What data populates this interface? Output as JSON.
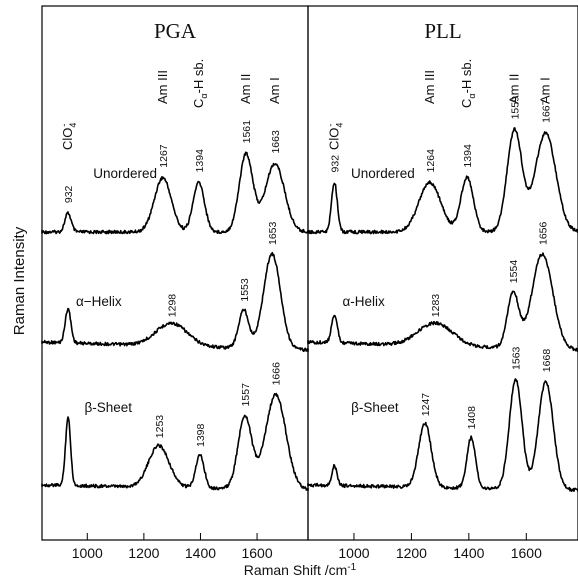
{
  "chart_data": {
    "type": "line",
    "xlabel": "Raman Shift /cm",
    "xlabel_sup": "-1",
    "ylabel": "Raman Intensity",
    "grid": false,
    "legend": "none",
    "panels": [
      {
        "title": "PGA",
        "xlim": [
          840,
          1780
        ],
        "xticks": [
          1000,
          1200,
          1400,
          1600
        ],
        "band_labels": [
          {
            "label": "ClO4-",
            "x": 932
          },
          {
            "label": "Am III",
            "x": 1267
          },
          {
            "label": "Cα-H sb.",
            "x": 1394
          },
          {
            "label": "Am II",
            "x": 1561
          },
          {
            "label": "Am I",
            "x": 1663
          }
        ],
        "series": [
          {
            "name": "Unordered",
            "peaks": [
              {
                "x": 932,
                "label": "932",
                "h": 0.16,
                "w": 11
              },
              {
                "x": 1267,
                "label": "1267",
                "h": 0.46,
                "w": 30
              },
              {
                "x": 1394,
                "label": "1394",
                "h": 0.42,
                "w": 20
              },
              {
                "x": 1561,
                "label": "1561",
                "h": 0.66,
                "w": 24
              },
              {
                "x": 1663,
                "label": "1663",
                "h": 0.58,
                "w": 34
              }
            ]
          },
          {
            "name": "α−Helix",
            "peaks": [
              {
                "x": 932,
                "label": "",
                "h": 0.36,
                "w": 10
              },
              {
                "x": 1298,
                "label": "1298",
                "h": 0.24,
                "w": 55
              },
              {
                "x": 1553,
                "label": "1553",
                "h": 0.4,
                "w": 18
              },
              {
                "x": 1653,
                "label": "1653",
                "h": 1.0,
                "w": 30
              }
            ]
          },
          {
            "name": "β-Sheet",
            "peaks": [
              {
                "x": 932,
                "label": "",
                "h": 0.62,
                "w": 9
              },
              {
                "x": 1253,
                "label": "1253",
                "h": 0.38,
                "w": 36
              },
              {
                "x": 1398,
                "label": "1398",
                "h": 0.3,
                "w": 15
              },
              {
                "x": 1557,
                "label": "1557",
                "h": 0.66,
                "w": 24
              },
              {
                "x": 1666,
                "label": "1666",
                "h": 0.86,
                "w": 36
              }
            ]
          }
        ]
      },
      {
        "title": "PLL",
        "xlim": [
          840,
          1780
        ],
        "xticks": [
          1000,
          1200,
          1400,
          1600
        ],
        "band_labels": [
          {
            "label": "ClO4-",
            "x": 932
          },
          {
            "label": "Am III",
            "x": 1264
          },
          {
            "label": "Cα-H sb.",
            "x": 1394
          },
          {
            "label": "Am II",
            "x": 1559
          },
          {
            "label": "Am I",
            "x": 1667
          }
        ],
        "series": [
          {
            "name": "Unordered",
            "peaks": [
              {
                "x": 932,
                "label": "932",
                "h": 0.42,
                "w": 10
              },
              {
                "x": 1264,
                "label": "1264",
                "h": 0.42,
                "w": 38
              },
              {
                "x": 1394,
                "label": "1394",
                "h": 0.46,
                "w": 22
              },
              {
                "x": 1559,
                "label": "1559",
                "h": 0.86,
                "w": 26
              },
              {
                "x": 1667,
                "label": "1667",
                "h": 0.84,
                "w": 36
              }
            ]
          },
          {
            "name": "α-Helix",
            "peaks": [
              {
                "x": 932,
                "label": "",
                "h": 0.3,
                "w": 10
              },
              {
                "x": 1283,
                "label": "1283",
                "h": 0.24,
                "w": 60
              },
              {
                "x": 1554,
                "label": "1554",
                "h": 0.58,
                "w": 20
              },
              {
                "x": 1656,
                "label": "1656",
                "h": 1.0,
                "w": 36
              }
            ]
          },
          {
            "name": "β-Sheet",
            "peaks": [
              {
                "x": 932,
                "label": "",
                "h": 0.18,
                "w": 9
              },
              {
                "x": 1247,
                "label": "1247",
                "h": 0.58,
                "w": 22
              },
              {
                "x": 1408,
                "label": "1408",
                "h": 0.46,
                "w": 15
              },
              {
                "x": 1563,
                "label": "1563",
                "h": 1.0,
                "w": 22
              },
              {
                "x": 1668,
                "label": "1668",
                "h": 0.98,
                "w": 26
              }
            ]
          }
        ]
      }
    ]
  }
}
